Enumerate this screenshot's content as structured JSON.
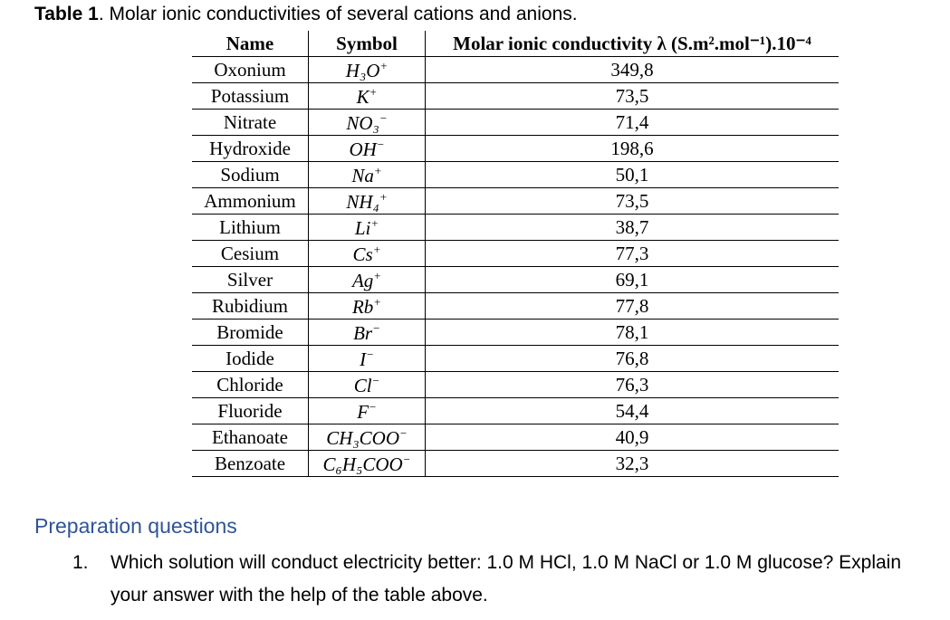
{
  "caption": {
    "label": "Table 1",
    "text": ". Molar ionic conductivities of several cations and anions."
  },
  "table": {
    "headers": {
      "name": "Name",
      "symbol": "Symbol",
      "conductivity": "Molar ionic conductivity λ (S.m².mol⁻¹).10⁻⁴"
    },
    "rows": [
      {
        "name": "Oxonium",
        "symbol": {
          "base": "H₃O",
          "sup": "+"
        },
        "value": "349,8"
      },
      {
        "name": "Potassium",
        "symbol": {
          "base": "K",
          "sup": "+"
        },
        "value": "73,5"
      },
      {
        "name": "Nitrate",
        "symbol": {
          "base": "NO₃",
          "sup": "−"
        },
        "value": "71,4"
      },
      {
        "name": "Hydroxide",
        "symbol": {
          "base": "OH",
          "sup": "−"
        },
        "value": "198,6"
      },
      {
        "name": "Sodium",
        "symbol": {
          "base": "Na",
          "sup": "+"
        },
        "value": "50,1"
      },
      {
        "name": "Ammonium",
        "symbol": {
          "base": "NH₄",
          "sup": "+"
        },
        "value": "73,5"
      },
      {
        "name": "Lithium",
        "symbol": {
          "base": "Li",
          "sup": "+"
        },
        "value": "38,7"
      },
      {
        "name": "Cesium",
        "symbol": {
          "base": "Cs",
          "sup": "+"
        },
        "value": "77,3"
      },
      {
        "name": "Silver",
        "symbol": {
          "base": "Ag",
          "sup": "+"
        },
        "value": "69,1"
      },
      {
        "name": "Rubidium",
        "symbol": {
          "base": "Rb",
          "sup": "+"
        },
        "value": "77,8"
      },
      {
        "name": "Bromide",
        "symbol": {
          "base": "Br",
          "sup": "−"
        },
        "value": "78,1"
      },
      {
        "name": "Iodide",
        "symbol": {
          "base": "I",
          "sup": "−"
        },
        "value": "76,8"
      },
      {
        "name": "Chloride",
        "symbol": {
          "base": "Cl",
          "sup": "−"
        },
        "value": "76,3"
      },
      {
        "name": "Fluoride",
        "symbol": {
          "base": "F",
          "sup": "−"
        },
        "value": "54,4"
      },
      {
        "name": "Ethanoate",
        "symbol": {
          "base": "CH₃COO",
          "sup": "−"
        },
        "value": "40,9"
      },
      {
        "name": "Benzoate",
        "symbol": {
          "base": "C₆H₅COO",
          "sup": "−"
        },
        "value": "32,3"
      }
    ]
  },
  "section": {
    "heading": "Preparation questions"
  },
  "question": {
    "number": "1.",
    "text": "Which solution will conduct electricity better: 1.0 M HCl, 1.0 M NaCl or 1.0 M glucose? Explain your answer with the help of the table above."
  }
}
